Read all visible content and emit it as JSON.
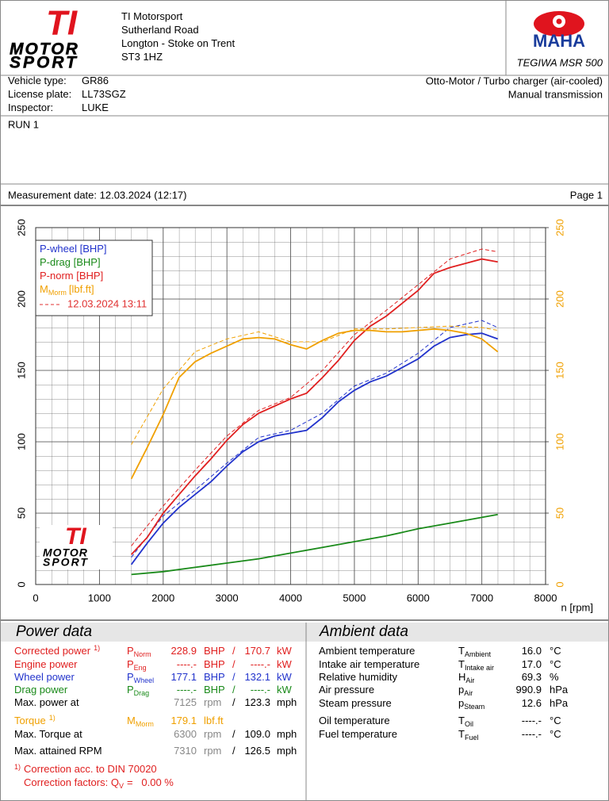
{
  "logo": {
    "mark": "TI",
    "line1": "MOTOR",
    "line2": "SPORT"
  },
  "address": [
    "TI Motorsport",
    "Sutherland Road",
    "Longton - Stoke on Trent",
    "ST3 1HZ"
  ],
  "brand": {
    "name": "MAHA",
    "model": "TEGIWA MSR 500"
  },
  "vehicle": {
    "rows": [
      [
        "Vehicle type:",
        "GR86"
      ],
      [
        "License plate:",
        "LL73SGZ"
      ],
      [
        "Inspector:",
        "LUKE"
      ]
    ],
    "engine": "Otto-Motor / Turbo charger (air-cooled)",
    "transmission": "Manual transmission"
  },
  "run": "RUN 1",
  "measurement": {
    "date": "Measurement date: 12.03.2024 (12:17)",
    "page": "Page 1"
  },
  "chart_data": {
    "type": "line",
    "x_label": "n [rpm]",
    "xlim": [
      0,
      8000
    ],
    "xticks": [
      0,
      1000,
      2000,
      3000,
      4000,
      5000,
      6000,
      7000,
      8000
    ],
    "ylim": [
      0,
      250
    ],
    "yticks": [
      0,
      50,
      100,
      150,
      200,
      250
    ],
    "y2lim": [
      0,
      250
    ],
    "y2ticks": [
      0,
      50,
      100,
      150,
      200,
      250
    ],
    "grid": true,
    "series": [
      {
        "name": "P-wheel [BHP]",
        "color": "#2233cc",
        "x": [
          1500,
          1750,
          2000,
          2250,
          2500,
          2750,
          3000,
          3250,
          3500,
          3750,
          4000,
          4250,
          4500,
          4750,
          5000,
          5250,
          5500,
          5750,
          6000,
          6250,
          6500,
          6750,
          7000,
          7250
        ],
        "values": [
          14,
          29,
          43,
          54,
          63,
          72,
          83,
          93,
          100,
          104,
          106,
          108,
          117,
          128,
          136,
          142,
          146,
          152,
          158,
          167,
          173,
          175,
          176,
          172
        ]
      },
      {
        "name": "P-drag [BHP]",
        "color": "#1a8a1a",
        "x": [
          1500,
          2000,
          2500,
          3000,
          3500,
          4000,
          4500,
          5000,
          5500,
          6000,
          6500,
          7000,
          7250
        ],
        "values": [
          7,
          9,
          12,
          15,
          18,
          22,
          26,
          30,
          34,
          39,
          43,
          47,
          49
        ]
      },
      {
        "name": "P-norm [BHP]",
        "color": "#e02020",
        "x": [
          1500,
          1750,
          2000,
          2250,
          2500,
          2750,
          3000,
          3250,
          3500,
          3750,
          4000,
          4250,
          4500,
          4750,
          5000,
          5250,
          5500,
          5750,
          6000,
          6250,
          6500,
          6750,
          7000,
          7250
        ],
        "values": [
          21,
          33,
          50,
          63,
          76,
          88,
          101,
          112,
          120,
          125,
          130,
          134,
          145,
          157,
          171,
          181,
          188,
          197,
          206,
          218,
          222,
          225,
          228,
          226
        ]
      },
      {
        "name": "M",
        "name_sub": "Morm",
        "name_unit": "[lbf.ft]",
        "color": "#f0a000",
        "axis": "y2",
        "x": [
          1500,
          1750,
          2000,
          2250,
          2500,
          2750,
          3000,
          3250,
          3500,
          3750,
          4000,
          4250,
          4500,
          4750,
          5000,
          5250,
          5500,
          5750,
          6000,
          6250,
          6500,
          6750,
          7000,
          7250
        ],
        "values": [
          74,
          96,
          119,
          145,
          156,
          162,
          167,
          172,
          173,
          172,
          168,
          165,
          171,
          176,
          178,
          178,
          177,
          177,
          178,
          179,
          178,
          176,
          172,
          163
        ]
      }
    ],
    "reference": {
      "name": "12.03.2024 13:11",
      "color": "#e03030",
      "series": [
        {
          "color": "#e02020",
          "x": [
            1500,
            2000,
            2500,
            3000,
            3500,
            4000,
            4500,
            5000,
            5500,
            6000,
            6500,
            7000,
            7250
          ],
          "values": [
            27,
            55,
            80,
            104,
            122,
            131,
            150,
            175,
            192,
            210,
            228,
            235,
            233
          ]
        },
        {
          "color": "#2233cc",
          "x": [
            1500,
            2000,
            2500,
            3000,
            3500,
            4000,
            4500,
            5000,
            5500,
            6000,
            6500,
            7000,
            7250
          ],
          "values": [
            19,
            48,
            66,
            85,
            103,
            108,
            120,
            139,
            148,
            162,
            180,
            185,
            180
          ]
        },
        {
          "color": "#f0a000",
          "axis": "y2",
          "x": [
            1500,
            2000,
            2500,
            3000,
            3500,
            4000,
            4500,
            5000,
            5500,
            6000,
            6500,
            7000,
            7250
          ],
          "values": [
            98,
            137,
            163,
            172,
            177,
            170,
            170,
            179,
            179,
            180,
            181,
            180,
            178
          ]
        }
      ]
    }
  },
  "power": {
    "title": "Power data",
    "rows": [
      {
        "label": "Corrected power",
        "note": "1)",
        "sym": "P",
        "sub": "Norm",
        "v1": "228.9",
        "u1": "BHP",
        "sep": "/",
        "v2": "170.7",
        "u2": "kW",
        "color": "#e02020",
        "label_color": "#e02020"
      },
      {
        "label": "Engine power",
        "sym": "P",
        "sub": "Eng",
        "v1": "----.-",
        "u1": "BHP",
        "sep": "/",
        "v2": "----.-",
        "u2": "kW",
        "color": "#e02020",
        "label_color": "#e02020"
      },
      {
        "label": "Wheel power",
        "sym": "P",
        "sub": "Wheel",
        "v1": "177.1",
        "u1": "BHP",
        "sep": "/",
        "v2": "132.1",
        "u2": "kW",
        "color": "#2233cc",
        "label_color": "#2233cc"
      },
      {
        "label": "Drag power",
        "sym": "P",
        "sub": "Drag",
        "v1": "----.-",
        "u1": "BHP",
        "sep": "/",
        "v2": "----.-",
        "u2": "kW",
        "color": "#1a8a1a",
        "label_color": "#1a8a1a"
      },
      {
        "label": "Max. power at",
        "v1": "7125",
        "u1": "rpm",
        "sep": "/",
        "v2": "123.3",
        "u2": "mph",
        "color": "#888888",
        "label_color": "#000000"
      },
      {
        "label": "Torque",
        "note": "1)",
        "sym": "M",
        "sub": "Morm",
        "v1": "179.1",
        "u1": "lbf.ft",
        "color": "#f0a000",
        "label_color": "#f0a000"
      },
      {
        "label": "Max. Torque at",
        "v1": "6300",
        "u1": "rpm",
        "sep": "/",
        "v2": "109.0",
        "u2": "mph",
        "color": "#888888",
        "label_color": "#000000"
      },
      {
        "label": "Max. attained RPM",
        "v1": "7310",
        "u1": "rpm",
        "sep": "/",
        "v2": "126.5",
        "u2": "mph",
        "color": "#888888",
        "label_color": "#000000"
      }
    ],
    "footnote": {
      "note": "1)",
      "text": "Correction acc. to DIN 70020",
      "factors": "Correction factors: Q",
      "factors_sub": "V",
      "factors_value": "=   0.00 %"
    }
  },
  "ambient": {
    "title": "Ambient data",
    "rows": [
      {
        "label": "Ambient temperature",
        "sym": "T",
        "sub": "Ambient",
        "v": "16.0",
        "u": "°C"
      },
      {
        "label": "Intake air temperature",
        "sym": "T",
        "sub": "Intake air",
        "v": "17.0",
        "u": "°C"
      },
      {
        "label": "Relative humidity",
        "sym": "H",
        "sub": "Air",
        "v": "69.3",
        "u": "%"
      },
      {
        "label": "Air pressure",
        "sym": "p",
        "sub": "Air",
        "v": "990.9",
        "u": "hPa"
      },
      {
        "label": "Steam pressure",
        "sym": "p",
        "sub": "Steam",
        "v": "12.6",
        "u": "hPa"
      },
      {
        "label": "Oil temperature",
        "sym": "T",
        "sub": "Oil",
        "v": "----.-",
        "u": "°C"
      },
      {
        "label": "Fuel temperature",
        "sym": "T",
        "sub": "Fuel",
        "v": "----.-",
        "u": "°C"
      }
    ]
  }
}
